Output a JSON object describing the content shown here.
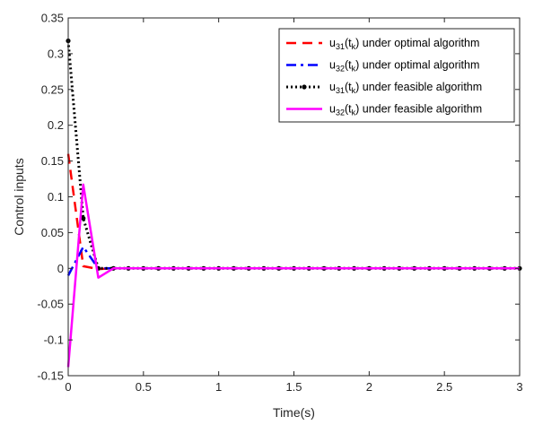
{
  "chart_data": {
    "type": "line",
    "xlabel": "Time(s)",
    "ylabel": "Control inputs",
    "xlim": [
      0,
      3
    ],
    "ylim": [
      -0.15,
      0.35
    ],
    "xticks": [
      0,
      0.5,
      1,
      1.5,
      2,
      2.5,
      3
    ],
    "xtick_labels": [
      "0",
      "0.5",
      "1",
      "1.5",
      "2",
      "2.5",
      "3"
    ],
    "yticks": [
      -0.15,
      -0.1,
      -0.05,
      0,
      0.05,
      0.1,
      0.15,
      0.2,
      0.25,
      0.3,
      0.35
    ],
    "ytick_labels": [
      "-0.15",
      "-0.1",
      "-0.05",
      "0",
      "0.05",
      "0.1",
      "0.15",
      "0.2",
      "0.25",
      "0.3",
      "0.35"
    ],
    "grid": false,
    "legend_position": "top-right",
    "series": [
      {
        "name": "u31(tk) under optimal algorithm",
        "legend_main": "u",
        "legend_sub": "31",
        "legend_mid": "(t",
        "legend_sub2": "k",
        "legend_rest": ") under optimal algorithm",
        "color": "#ff0000",
        "style": "dashed",
        "x": [
          0,
          0.1,
          0.2,
          0.3,
          0.4,
          0.5,
          0.6,
          0.7,
          0.8,
          0.9,
          1.0,
          1.1,
          1.2,
          1.3,
          1.4,
          1.5,
          1.6,
          1.7,
          1.8,
          1.9,
          2.0,
          2.1,
          2.2,
          2.3,
          2.4,
          2.5,
          2.6,
          2.7,
          2.8,
          2.9,
          3.0
        ],
        "y": [
          0.16,
          0.003,
          -0.001,
          0,
          0,
          0,
          0,
          0,
          0,
          0,
          0,
          0,
          0,
          0,
          0,
          0,
          0,
          0,
          0,
          0,
          0,
          0,
          0,
          0,
          0,
          0,
          0,
          0,
          0,
          0,
          0
        ]
      },
      {
        "name": "u32(tk) under optimal algorithm",
        "legend_main": "u",
        "legend_sub": "32",
        "legend_mid": "(t",
        "legend_sub2": "k",
        "legend_rest": ") under optimal algorithm",
        "color": "#0000ff",
        "style": "dashdot",
        "x": [
          0,
          0.1,
          0.2,
          0.3,
          0.4,
          0.5,
          0.6,
          0.7,
          0.8,
          0.9,
          1.0,
          1.1,
          1.2,
          1.3,
          1.4,
          1.5,
          1.6,
          1.7,
          1.8,
          1.9,
          2.0,
          2.1,
          2.2,
          2.3,
          2.4,
          2.5,
          2.6,
          2.7,
          2.8,
          2.9,
          3.0
        ],
        "y": [
          -0.01,
          0.03,
          0.0,
          0,
          0,
          0,
          0,
          0,
          0,
          0,
          0,
          0,
          0,
          0,
          0,
          0,
          0,
          0,
          0,
          0,
          0,
          0,
          0,
          0,
          0,
          0,
          0,
          0,
          0,
          0,
          0
        ]
      },
      {
        "name": "u31(tk) under feasible algorithm",
        "legend_main": "u",
        "legend_sub": "31",
        "legend_mid": "(t",
        "legend_sub2": "k",
        "legend_rest": ") under feasible algorithm",
        "color": "#000000",
        "style": "dotted-marker",
        "x": [
          0,
          0.1,
          0.2,
          0.3,
          0.4,
          0.5,
          0.6,
          0.7,
          0.8,
          0.9,
          1.0,
          1.1,
          1.2,
          1.3,
          1.4,
          1.5,
          1.6,
          1.7,
          1.8,
          1.9,
          2.0,
          2.1,
          2.2,
          2.3,
          2.4,
          2.5,
          2.6,
          2.7,
          2.8,
          2.9,
          3.0
        ],
        "y": [
          0.318,
          0.07,
          0.0,
          0,
          0,
          0,
          0,
          0,
          0,
          0,
          0,
          0,
          0,
          0,
          0,
          0,
          0,
          0,
          0,
          0,
          0,
          0,
          0,
          0,
          0,
          0,
          0,
          0,
          0,
          0,
          0
        ]
      },
      {
        "name": "u32(tk) under feasible algorithm",
        "legend_main": "u",
        "legend_sub": "32",
        "legend_mid": "(t",
        "legend_sub2": "k",
        "legend_rest": ") under feasible algorithm",
        "color": "#ff00ff",
        "style": "solid",
        "x": [
          0,
          0.1,
          0.2,
          0.3,
          0.4,
          0.5,
          0.6,
          0.7,
          0.8,
          0.9,
          1.0,
          1.1,
          1.2,
          1.3,
          1.4,
          1.5,
          1.6,
          1.7,
          1.8,
          1.9,
          2.0,
          2.1,
          2.2,
          2.3,
          2.4,
          2.5,
          2.6,
          2.7,
          2.8,
          2.9,
          3.0
        ],
        "y": [
          -0.138,
          0.117,
          -0.013,
          0,
          0,
          0,
          0,
          0,
          0,
          0,
          0,
          0,
          0,
          0,
          0,
          0,
          0,
          0,
          0,
          0,
          0,
          0,
          0,
          0,
          0,
          0,
          0,
          0,
          0,
          0,
          0
        ]
      }
    ]
  }
}
